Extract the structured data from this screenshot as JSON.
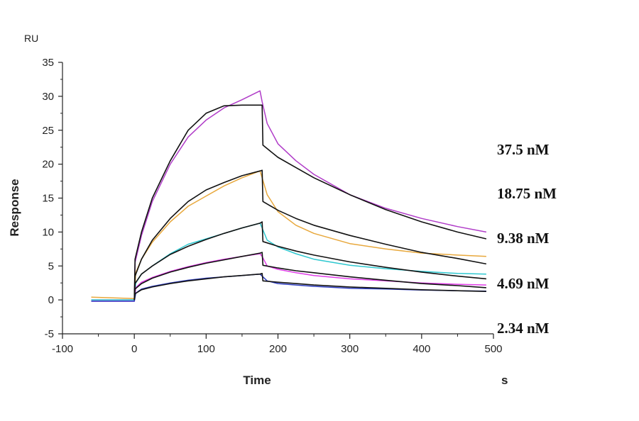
{
  "chart_data": {
    "type": "line",
    "y_unit": "RU",
    "x_unit": "s",
    "xlabel": "Time",
    "ylabel": "Response",
    "xlim": [
      -100,
      500
    ],
    "ylim": [
      -5,
      35
    ],
    "x_ticks": [
      -100,
      0,
      100,
      200,
      300,
      400,
      500
    ],
    "y_ticks": [
      -5,
      0,
      5,
      10,
      15,
      20,
      25,
      30,
      35
    ],
    "legend_labels": [
      "37.5 nM",
      "18.75 nM",
      "9.38 nM",
      "4.69 nM",
      "2.34 nM"
    ],
    "series": [
      {
        "color": "#b03cc8",
        "points": [
          [
            -60,
            0
          ],
          [
            0,
            0
          ],
          [
            1,
            5.5
          ],
          [
            10,
            9.5
          ],
          [
            25,
            14.5
          ],
          [
            50,
            20
          ],
          [
            75,
            24
          ],
          [
            100,
            26.5
          ],
          [
            125,
            28.3
          ],
          [
            150,
            29.5
          ],
          [
            175,
            30.8
          ],
          [
            178,
            29.2
          ],
          [
            185,
            26
          ],
          [
            200,
            23
          ],
          [
            225,
            20.5
          ],
          [
            250,
            18.5
          ],
          [
            300,
            15.5
          ],
          [
            350,
            13.5
          ],
          [
            400,
            12
          ],
          [
            450,
            10.8
          ],
          [
            490,
            10
          ]
        ]
      },
      {
        "color": "#e8a83c",
        "points": [
          [
            -60,
            0.4
          ],
          [
            0,
            0.2
          ],
          [
            2,
            4
          ],
          [
            10,
            6
          ],
          [
            25,
            8.5
          ],
          [
            50,
            11.5
          ],
          [
            75,
            13.8
          ],
          [
            100,
            15.3
          ],
          [
            125,
            16.8
          ],
          [
            150,
            18
          ],
          [
            175,
            19
          ],
          [
            178,
            18
          ],
          [
            185,
            15.5
          ],
          [
            200,
            13
          ],
          [
            225,
            11
          ],
          [
            250,
            9.8
          ],
          [
            300,
            8.3
          ],
          [
            350,
            7.5
          ],
          [
            400,
            6.9
          ],
          [
            450,
            6.6
          ],
          [
            490,
            6.4
          ]
        ]
      },
      {
        "color": "#2ec8d0",
        "points": [
          [
            -60,
            0
          ],
          [
            0,
            0
          ],
          [
            2,
            2.5
          ],
          [
            10,
            3.8
          ],
          [
            25,
            5
          ],
          [
            50,
            6.8
          ],
          [
            75,
            8.2
          ],
          [
            100,
            9
          ],
          [
            125,
            9.8
          ],
          [
            150,
            10.6
          ],
          [
            175,
            11.3
          ],
          [
            178,
            10.6
          ],
          [
            185,
            8.8
          ],
          [
            200,
            7.8
          ],
          [
            225,
            6.8
          ],
          [
            250,
            6
          ],
          [
            300,
            5.1
          ],
          [
            350,
            4.6
          ],
          [
            400,
            4.2
          ],
          [
            450,
            3.9
          ],
          [
            490,
            3.8
          ]
        ]
      },
      {
        "color": "#e03ce8",
        "points": [
          [
            -60,
            -0.2
          ],
          [
            0,
            -0.2
          ],
          [
            2,
            1.8
          ],
          [
            10,
            2.6
          ],
          [
            25,
            3.3
          ],
          [
            50,
            4.2
          ],
          [
            75,
            4.9
          ],
          [
            100,
            5.5
          ],
          [
            125,
            6
          ],
          [
            150,
            6.4
          ],
          [
            175,
            6.8
          ],
          [
            178,
            6.4
          ],
          [
            185,
            5
          ],
          [
            200,
            4.5
          ],
          [
            225,
            4
          ],
          [
            250,
            3.6
          ],
          [
            300,
            3.1
          ],
          [
            350,
            2.8
          ],
          [
            400,
            2.5
          ],
          [
            450,
            2.3
          ],
          [
            490,
            2.2
          ]
        ]
      },
      {
        "color": "#2d3cc0",
        "points": [
          [
            -60,
            -0.2
          ],
          [
            0,
            -0.2
          ],
          [
            2,
            1
          ],
          [
            10,
            1.6
          ],
          [
            25,
            2
          ],
          [
            50,
            2.5
          ],
          [
            75,
            2.9
          ],
          [
            100,
            3.2
          ],
          [
            125,
            3.4
          ],
          [
            150,
            3.6
          ],
          [
            175,
            3.8
          ],
          [
            178,
            3.5
          ],
          [
            185,
            2.8
          ],
          [
            200,
            2.4
          ],
          [
            225,
            2.2
          ],
          [
            250,
            2
          ],
          [
            300,
            1.7
          ],
          [
            350,
            1.6
          ],
          [
            400,
            1.45
          ],
          [
            450,
            1.35
          ],
          [
            490,
            1.3
          ]
        ]
      },
      {
        "color": "#111111",
        "points": [
          [
            0,
            0
          ],
          [
            1,
            6
          ],
          [
            10,
            10
          ],
          [
            25,
            15
          ],
          [
            50,
            20.5
          ],
          [
            75,
            25
          ],
          [
            100,
            27.5
          ],
          [
            125,
            28.6
          ],
          [
            150,
            28.7
          ],
          [
            178,
            28.7
          ],
          [
            179,
            22.8
          ],
          [
            200,
            21
          ],
          [
            225,
            19.5
          ],
          [
            250,
            18
          ],
          [
            300,
            15.5
          ],
          [
            350,
            13.3
          ],
          [
            400,
            11.5
          ],
          [
            450,
            10
          ],
          [
            490,
            9
          ]
        ]
      },
      {
        "color": "#111111",
        "points": [
          [
            0,
            0
          ],
          [
            1,
            3.5
          ],
          [
            10,
            6
          ],
          [
            25,
            8.8
          ],
          [
            50,
            12
          ],
          [
            75,
            14.5
          ],
          [
            100,
            16.2
          ],
          [
            125,
            17.3
          ],
          [
            150,
            18.3
          ],
          [
            175,
            19
          ],
          [
            178,
            19.1
          ],
          [
            179,
            14.5
          ],
          [
            200,
            13.2
          ],
          [
            225,
            12
          ],
          [
            250,
            11
          ],
          [
            300,
            9.5
          ],
          [
            350,
            8.2
          ],
          [
            400,
            7
          ],
          [
            450,
            6.1
          ],
          [
            490,
            5.3
          ]
        ]
      },
      {
        "color": "#111111",
        "points": [
          [
            0,
            0
          ],
          [
            1,
            2.4
          ],
          [
            10,
            3.8
          ],
          [
            25,
            5
          ],
          [
            50,
            6.7
          ],
          [
            75,
            7.9
          ],
          [
            100,
            8.9
          ],
          [
            125,
            9.8
          ],
          [
            150,
            10.6
          ],
          [
            175,
            11.3
          ],
          [
            178,
            11.5
          ],
          [
            179,
            8.6
          ],
          [
            200,
            7.9
          ],
          [
            225,
            7.2
          ],
          [
            250,
            6.6
          ],
          [
            300,
            5.6
          ],
          [
            350,
            4.8
          ],
          [
            400,
            4.1
          ],
          [
            450,
            3.5
          ],
          [
            490,
            3.1
          ]
        ]
      },
      {
        "color": "#111111",
        "points": [
          [
            0,
            0
          ],
          [
            1,
            1.6
          ],
          [
            10,
            2.4
          ],
          [
            25,
            3.2
          ],
          [
            50,
            4.1
          ],
          [
            75,
            4.8
          ],
          [
            100,
            5.4
          ],
          [
            125,
            5.9
          ],
          [
            150,
            6.4
          ],
          [
            175,
            6.9
          ],
          [
            178,
            7
          ],
          [
            179,
            5.1
          ],
          [
            200,
            4.7
          ],
          [
            225,
            4.3
          ],
          [
            250,
            4
          ],
          [
            300,
            3.4
          ],
          [
            350,
            2.9
          ],
          [
            400,
            2.4
          ],
          [
            450,
            2.1
          ],
          [
            490,
            1.8
          ]
        ]
      },
      {
        "color": "#111111",
        "points": [
          [
            0,
            0
          ],
          [
            1,
            0.9
          ],
          [
            10,
            1.5
          ],
          [
            25,
            1.9
          ],
          [
            50,
            2.4
          ],
          [
            75,
            2.8
          ],
          [
            100,
            3.1
          ],
          [
            125,
            3.4
          ],
          [
            150,
            3.6
          ],
          [
            175,
            3.8
          ],
          [
            178,
            3.9
          ],
          [
            179,
            2.8
          ],
          [
            200,
            2.6
          ],
          [
            225,
            2.4
          ],
          [
            250,
            2.2
          ],
          [
            300,
            1.9
          ],
          [
            350,
            1.7
          ],
          [
            400,
            1.5
          ],
          [
            450,
            1.35
          ],
          [
            490,
            1.25
          ]
        ]
      }
    ]
  }
}
